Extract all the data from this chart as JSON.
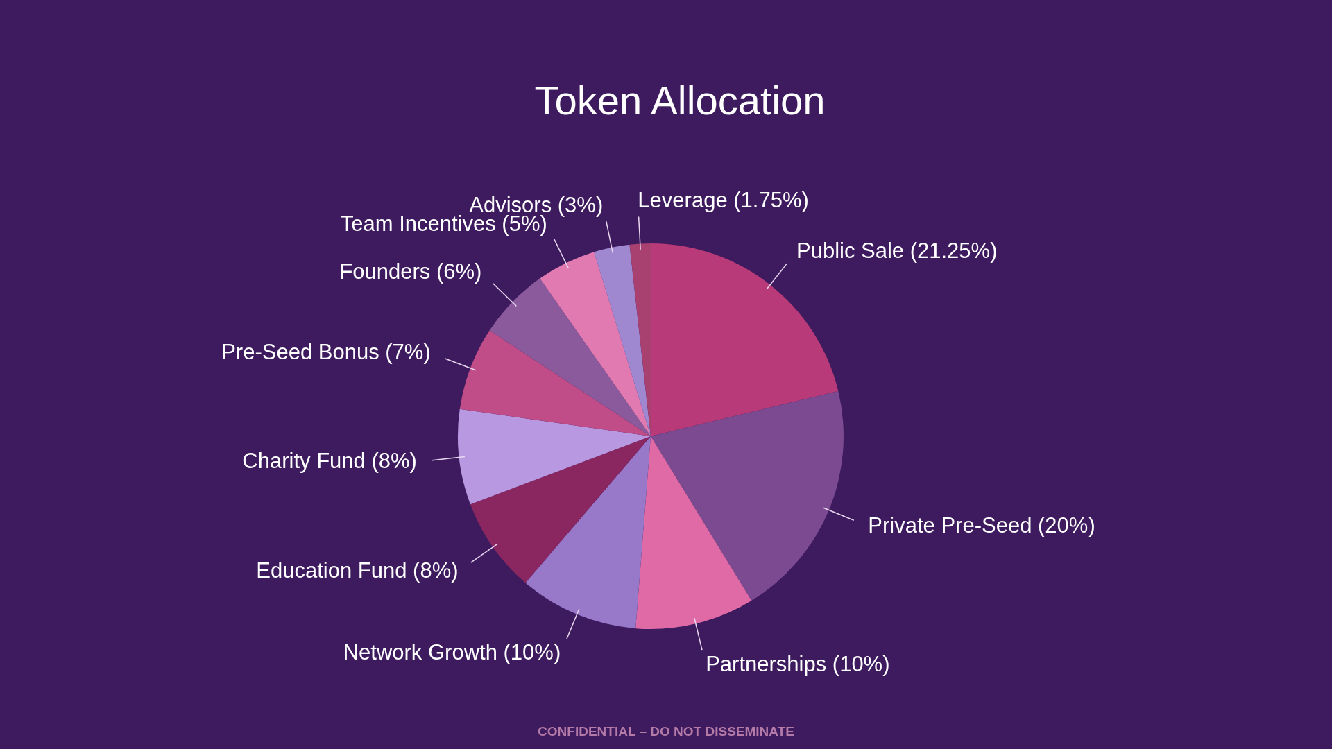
{
  "chart_data": {
    "type": "pie",
    "title": "Token Allocation",
    "categories": [
      "Public Sale (21.25%)",
      "Private Pre-Seed (20%)",
      "Partnerships (10%)",
      "Network Growth (10%)",
      "Education Fund (8%)",
      "Charity Fund (8%)",
      "Pre-Seed Bonus (7%)",
      "Founders (6%)",
      "Team Incentives (5%)",
      "Advisors (3%)",
      "Leverage (1.75%)"
    ],
    "values": [
      21.25,
      20,
      10,
      10,
      8,
      8,
      7,
      6,
      5,
      3,
      1.75
    ],
    "colors": [
      "#b83a78",
      "#7b4a90",
      "#e06aa5",
      "#9878c8",
      "#8a2660",
      "#b898e0",
      "#c04c88",
      "#8a5a9c",
      "#e07ab0",
      "#a088d0",
      "#a84070"
    ],
    "annotations": [
      "CONFIDENTIAL – DO NOT DISSEMINATE"
    ]
  }
}
